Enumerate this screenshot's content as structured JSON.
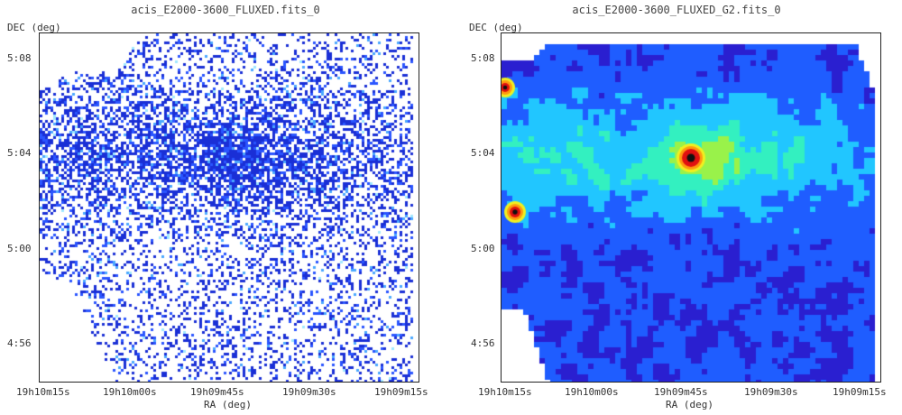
{
  "panels": [
    {
      "title": "acis_E2000-3600_FLUXED.fits_0",
      "ylabel": "DEC (deg)",
      "xlabel": "RA (deg)",
      "yticks": [
        "5:08",
        "5:04",
        "5:00",
        "4:56"
      ],
      "xticks": [
        "19h10m15s",
        "19h10m00s",
        "19h09m45s",
        "19h09m30s",
        "19h09m15s"
      ],
      "style": "raw-counts",
      "colors": [
        "#1a2fd6",
        "#2a55ff",
        "#4aa8ff",
        "#9fe8ff"
      ]
    },
    {
      "title": "acis_E2000-3600_FLUXED_G2.fits_0",
      "ylabel": "DEC (deg)",
      "xlabel": "RA (deg)",
      "yticks": [
        "5:08",
        "5:04",
        "5:00",
        "4:56"
      ],
      "xticks": [
        "19h10m15s",
        "19h10m00s",
        "19h09m45s",
        "19h09m30s",
        "19h09m15s"
      ],
      "style": "smoothed",
      "colors": [
        "#2a1fd0",
        "#1f5dff",
        "#21c6ff",
        "#33f0c0",
        "#99f24a",
        "#f0f020",
        "#ff9a10",
        "#e01010",
        "#111111"
      ]
    }
  ]
}
